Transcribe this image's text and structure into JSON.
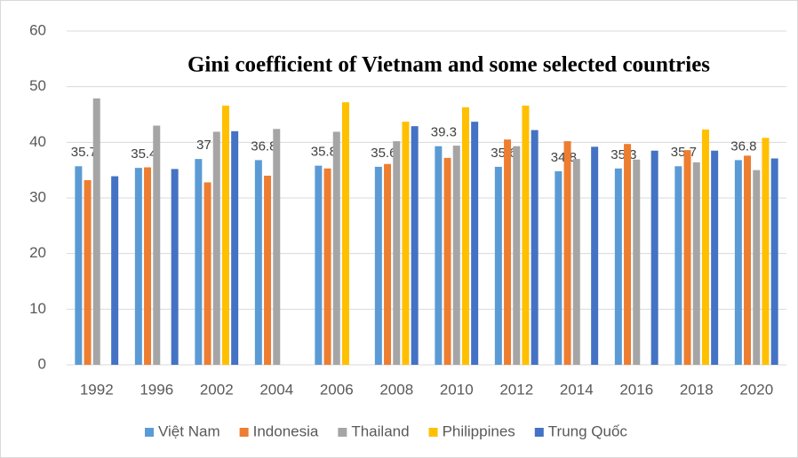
{
  "chart_data": {
    "type": "bar",
    "title": "Gini coefficient of Vietnam and some selected countries",
    "categories": [
      "1992",
      "1996",
      "2002",
      "2004",
      "2006",
      "2008",
      "2010",
      "2012",
      "2014",
      "2016",
      "2018",
      "2020"
    ],
    "series": [
      {
        "name": "Việt Nam",
        "color": "#5b9bd5",
        "data_labels": true,
        "values": [
          35.7,
          35.4,
          37,
          36.8,
          35.8,
          35.6,
          39.3,
          35.6,
          34.8,
          35.3,
          35.7,
          36.8
        ]
      },
      {
        "name": "Indonesia",
        "color": "#ed7d31",
        "values": [
          33.2,
          35.5,
          32.8,
          34,
          35.3,
          36.1,
          37.2,
          40.5,
          40.2,
          39.7,
          38.6,
          37.6
        ]
      },
      {
        "name": "Thailand",
        "color": "#a5a5a5",
        "values": [
          47.9,
          43,
          41.9,
          42.4,
          41.9,
          40.2,
          39.4,
          39.3,
          37,
          36.9,
          36.4,
          35
        ]
      },
      {
        "name": "Philippines",
        "color": "#ffc000",
        "values": [
          null,
          null,
          46.6,
          null,
          47.2,
          43.7,
          46.3,
          46.6,
          null,
          null,
          42.3,
          40.8
        ]
      },
      {
        "name": "Trung Quốc",
        "color": "#4472c4",
        "values": [
          33.9,
          35.2,
          42,
          null,
          null,
          42.9,
          43.7,
          42.2,
          39.2,
          38.5,
          38.5,
          37.1
        ]
      }
    ],
    "ylim": [
      0,
      60
    ],
    "yticks": [
      0,
      10,
      20,
      30,
      40,
      50,
      60
    ],
    "grid": true,
    "legend": "bottom"
  }
}
